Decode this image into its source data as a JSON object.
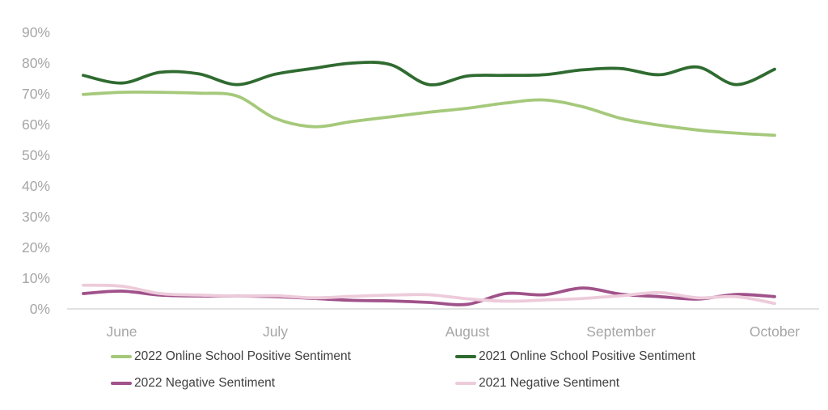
{
  "colors": {
    "background": "#FFFFFF",
    "axis_label": "#A6A6A6",
    "legend_text": "#3F3F3F",
    "axis_line": "#D9D9D9"
  },
  "chart_data": {
    "type": "line",
    "title": "",
    "grid": false,
    "legend_position": "bottom",
    "smooth_lines": true,
    "x_axis": {
      "unit": "weeks",
      "num_points": 19,
      "tick_labels": [
        "June",
        "July",
        "August",
        "September",
        "October"
      ],
      "tick_point_indices": [
        1,
        5,
        10,
        14,
        18
      ]
    },
    "y_axis": {
      "unit": "percent",
      "min": 0,
      "max": 90,
      "tick_step": 10,
      "tick_labels": [
        "0%",
        "10%",
        "20%",
        "30%",
        "40%",
        "50%",
        "60%",
        "70%",
        "80%",
        "90%"
      ]
    },
    "series": [
      {
        "name": "2022 Online School Positive Sentiment",
        "color": "#A5C97B",
        "values": [
          69.8,
          70.5,
          70.5,
          70.2,
          69.3,
          62,
          59.3,
          61,
          62.5,
          64,
          65.3,
          67,
          68,
          65.8,
          62,
          59.8,
          58.2,
          57.2,
          56.5
        ]
      },
      {
        "name": "2021 Online School Positive Sentiment",
        "color": "#2F6B30",
        "values": [
          76,
          73.5,
          77,
          76.5,
          73,
          76.4,
          78.3,
          80,
          79.5,
          73,
          75.8,
          76,
          76.2,
          77.8,
          78.2,
          76.2,
          78.7,
          73,
          78
        ]
      },
      {
        "name": "2022 Negative Sentiment",
        "color": "#A0528A",
        "values": [
          5,
          5.8,
          4.5,
          4.2,
          4.2,
          4,
          3.4,
          2.8,
          2.6,
          2.1,
          1.5,
          5,
          4.6,
          6.8,
          4.8,
          4,
          3.2,
          4.7,
          4
        ]
      },
      {
        "name": "2021 Negative Sentiment",
        "color": "#EDCBDA",
        "values": [
          7.7,
          7.4,
          5,
          4.5,
          4.2,
          4.3,
          3.6,
          4.1,
          4.5,
          4.6,
          3.3,
          2.5,
          2.9,
          3.4,
          4.3,
          5.3,
          3.6,
          4,
          1.8
        ]
      }
    ]
  }
}
